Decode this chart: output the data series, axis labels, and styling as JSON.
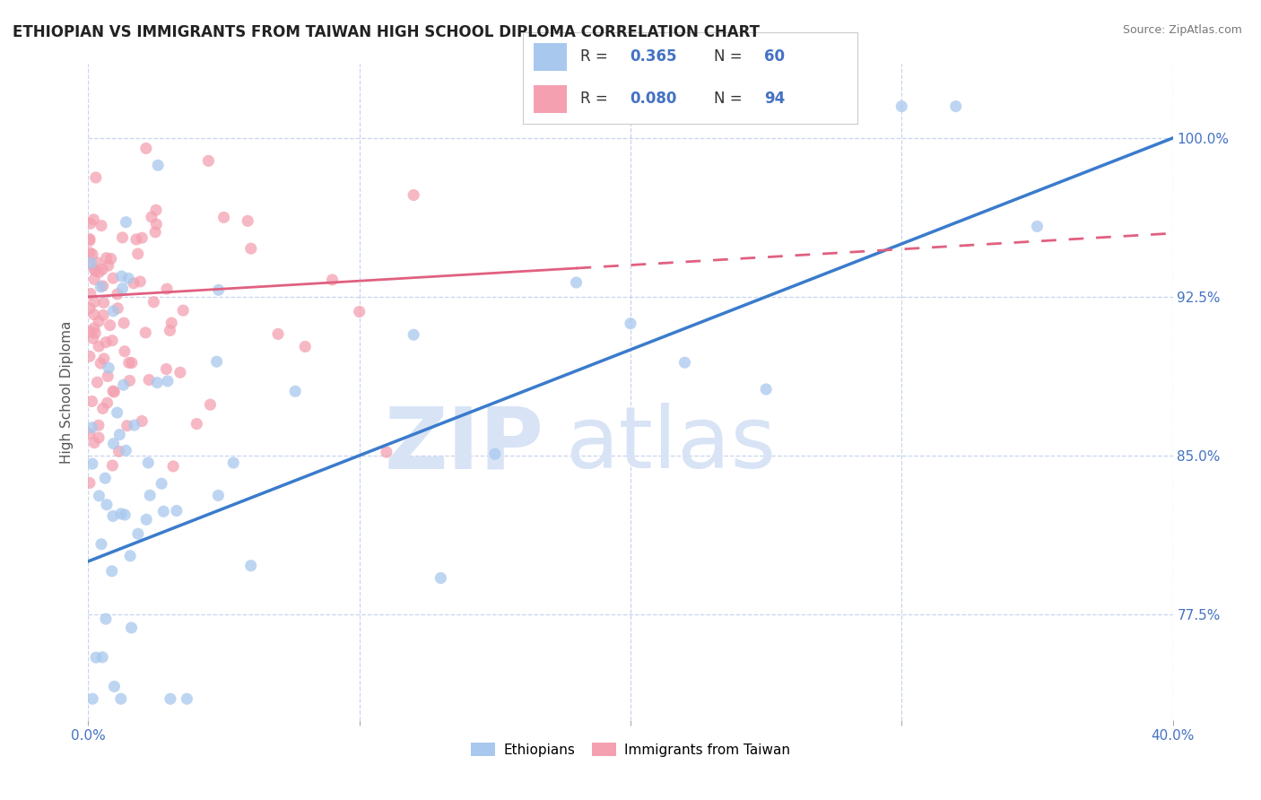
{
  "title": "ETHIOPIAN VS IMMIGRANTS FROM TAIWAN HIGH SCHOOL DIPLOMA CORRELATION CHART",
  "source": "Source: ZipAtlas.com",
  "ylabel": "High School Diploma",
  "y_ticks": [
    77.5,
    85.0,
    92.5,
    100.0
  ],
  "y_tick_labels": [
    "77.5%",
    "85.0%",
    "92.5%",
    "100.0%"
  ],
  "x_min": 0.0,
  "x_max": 40.0,
  "y_min": 72.5,
  "y_max": 103.5,
  "r_ethiopian": 0.365,
  "n_ethiopian": 60,
  "r_taiwan": 0.08,
  "n_taiwan": 94,
  "color_ethiopian": "#A8C8EE",
  "color_taiwan": "#F4A0B0",
  "color_line_ethiopian": "#3A7BCC",
  "color_line_taiwan": "#E06080",
  "axis_color": "#4472C4",
  "watermark_color": "#D8E4F5",
  "legend_box_color_ethiopian": "#A8C8EE",
  "legend_box_color_taiwan": "#F4A0B0",
  "eth_line_x0": 0.0,
  "eth_line_y0": 80.0,
  "eth_line_x1": 40.0,
  "eth_line_y1": 100.0,
  "tai_line_x0": 0.0,
  "tai_line_y0": 92.5,
  "tai_line_x1": 40.0,
  "tai_line_y1": 95.5,
  "tai_solid_end": 18.0
}
